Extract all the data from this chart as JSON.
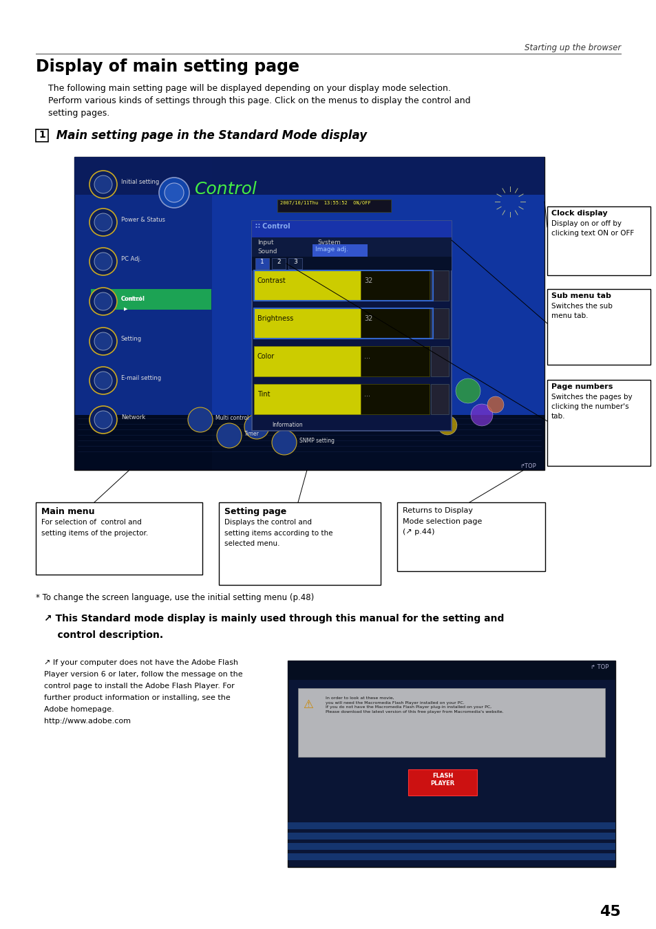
{
  "page_bg": "#ffffff",
  "header_text": "Starting up the browser",
  "title": "Display of main setting page",
  "body_line1": "The following main setting page will be displayed depending on your display mode selection.",
  "body_line2": "Perform various kinds of settings through this page. Click on the menus to display the control and",
  "body_line3": "setting pages.",
  "section_num": "1",
  "section_title": "Main setting page in the Standard Mode display",
  "callout1_title": "Clock display",
  "callout1_body": "Display on or off by\nclicking text ON or OFF",
  "callout2_title": "Sub menu tab",
  "callout2_body": "Switches the sub\nmenu tab.",
  "callout3_title": "Page numbers",
  "callout3_body": "Switches the pages by\nclicking the number's\ntab.",
  "box1_title": "Main menu",
  "box1_body": "For selection of  control and\nsetting items of the projector.",
  "box2_title": "Setting page",
  "box2_body": "Displays the control and\nsetting items according to the\nselected menu.",
  "box3_body": "Returns to Display\nMode selection page\n(↗ p.44)",
  "footnote": "* To change the screen language, use the initial setting menu (p.48)",
  "note_bold1": "↗ This Standard mode display is mainly used through this manual for the setting and",
  "note_bold2": "    control description.",
  "note2_line1": "↗ If your computer does not have the Adobe Flash",
  "note2_line2": "Player version 6 or later, follow the message on the",
  "note2_line3": "control page to install the Adobe Flash Player. For",
  "note2_line4": "further product information or installing, see the",
  "note2_line5": "Adobe homepage.",
  "note2_line6": "http://www.adobe.com",
  "page_number": "45",
  "ss_bg": "#0e2255",
  "ss_bg2": "#1a3a7a",
  "panel_bg": "#0a1540",
  "menu_color": "#ccdd00",
  "row_yellow": "#cccc00",
  "row_dark": "#1a1a00"
}
